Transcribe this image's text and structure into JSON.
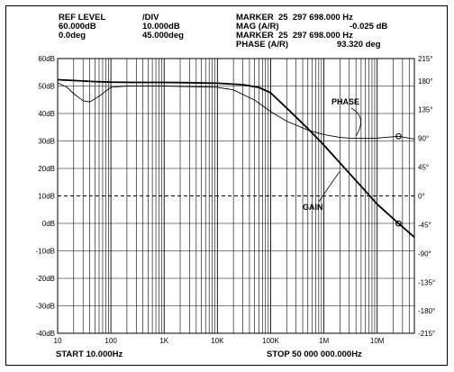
{
  "header": {
    "ref_level_label": "REF LEVEL",
    "ref_level_gain": "60.000dB",
    "ref_level_phase": "0.0deg",
    "div_label": "/DIV",
    "div_gain": "10.000dB",
    "div_phase": "45.000deg",
    "marker1": "MARKER  25  297 698.000 Hz",
    "mag_label": "MAG (A/R)",
    "mag_value": "-0.025 dB",
    "marker2": "MARKER  25  297 698.000 Hz",
    "phase_label": "PHASE (A/R)",
    "phase_value": "93.320 deg"
  },
  "footer": {
    "start": "START 10.000Hz",
    "stop": "STOP 50 000 000.000Hz"
  },
  "chart_data": {
    "type": "line",
    "x_scale": "log",
    "xlim": [
      10,
      50000000
    ],
    "x_ticks": [
      10,
      100,
      1000,
      10000,
      100000,
      1000000,
      10000000
    ],
    "x_tick_labels": [
      "10",
      "100",
      "1K",
      "10K",
      "100K",
      "1M",
      "10M"
    ],
    "ylim_left": [
      -40,
      60
    ],
    "y_left_ticks": [
      60,
      50,
      40,
      30,
      20,
      10,
      0,
      -10,
      -20,
      -30,
      -40
    ],
    "y_left_tick_labels": [
      "60dB",
      "50dB",
      "40dB",
      "30dB",
      "20dB",
      "10dB",
      "0dB",
      "-10dB",
      "-20dB",
      "-30dB",
      "-40dB"
    ],
    "ylim_right": [
      -215,
      215
    ],
    "y_right_ticks": [
      215,
      180,
      135,
      90,
      45,
      0,
      -45,
      -90,
      -135,
      -180,
      -215
    ],
    "y_right_tick_labels": [
      "215°",
      "180°",
      "135°",
      "90°",
      "45°",
      "0°",
      "-45°",
      "-90°",
      "-135°",
      "-180°",
      "-215°"
    ],
    "grid": true,
    "reference_lines": {
      "top_dashed_db": 60,
      "dashed_db": 10
    },
    "series": [
      {
        "name": "GAIN",
        "axis": "left",
        "x": [
          10,
          20,
          50,
          100,
          300,
          1000,
          3000,
          10000,
          30000,
          60000,
          100000,
          200000,
          500000,
          1000000,
          2000000,
          5000000,
          10000000,
          25297698,
          50000000
        ],
        "y": [
          52.3,
          52.0,
          51.6,
          51.4,
          51.3,
          51.3,
          51.2,
          51.0,
          50.5,
          49.5,
          47.5,
          42.0,
          34.5,
          28.5,
          22.0,
          13.5,
          7.0,
          -0.025,
          -5.0
        ]
      },
      {
        "name": "PHASE",
        "axis": "right",
        "x": [
          10,
          15,
          20,
          30,
          40,
          60,
          100,
          200,
          1000,
          10000,
          20000,
          50000,
          100000,
          200000,
          500000,
          1000000,
          2000000,
          3000000,
          5000000,
          10000000,
          25297698,
          50000000
        ],
        "y": [
          177,
          170,
          160,
          149,
          147,
          156,
          170,
          172,
          172,
          170,
          166,
          150,
          132,
          117,
          103,
          96,
          91.5,
          90.5,
          90,
          90.5,
          93.32,
          89
        ]
      }
    ],
    "markers": [
      {
        "series": "GAIN",
        "x": 25297698,
        "y": -0.025
      },
      {
        "series": "PHASE",
        "x": 25297698,
        "y": 93.32
      }
    ],
    "annotations": [
      {
        "text": "PHASE",
        "series": "PHASE"
      },
      {
        "text": "GAIN",
        "series": "GAIN"
      }
    ]
  }
}
